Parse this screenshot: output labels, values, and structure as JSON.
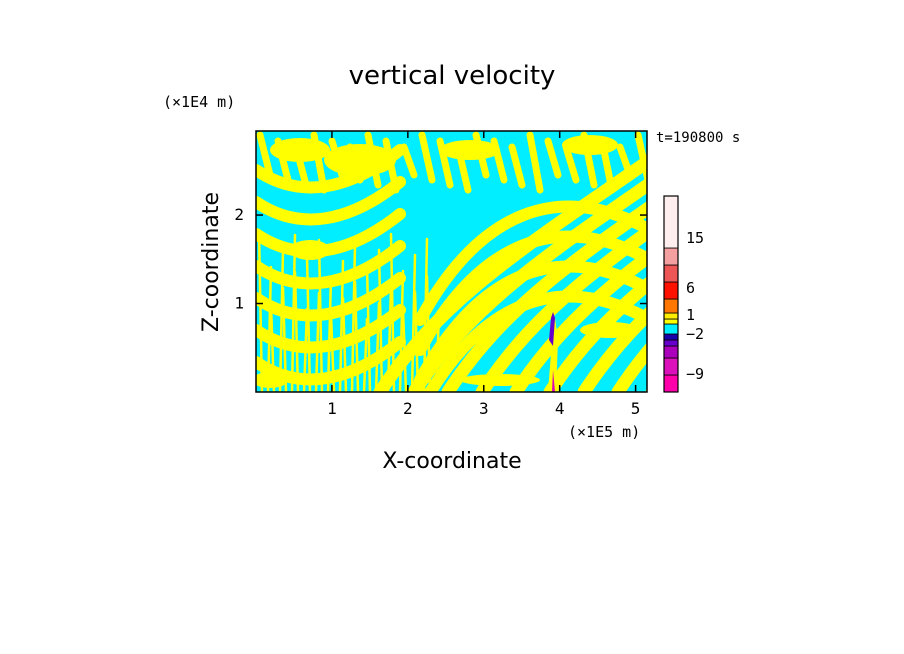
{
  "chart_data": {
    "type": "heatmap",
    "title": "vertical velocity",
    "xlabel": "X-coordinate",
    "ylabel": "Z-coordinate",
    "x_unit": "(×1E5 m)",
    "y_unit": "(×1E4 m)",
    "time_label": "t=190800 s",
    "xlim": [
      0,
      5.15
    ],
    "ylim": [
      0,
      2.95
    ],
    "x_ticks": [
      1,
      2,
      3,
      4,
      5
    ],
    "y_ticks": [
      1,
      2
    ],
    "colorbar": {
      "levels": [
        {
          "color": "#ff00aa"
        },
        {
          "color": "#dd11bb"
        },
        {
          "color": "#aa00bb"
        },
        {
          "color": "#6600cc"
        },
        {
          "color": "#1a00aa"
        },
        {
          "color": "#00eeff"
        },
        {
          "color": "#ffff00"
        },
        {
          "color": "#ffee00"
        },
        {
          "color": "#ff7700"
        },
        {
          "color": "#ff1100"
        },
        {
          "color": "#ee5555"
        },
        {
          "color": "#f4a0a0"
        },
        {
          "color": "#ffeeee"
        }
      ],
      "labels": [
        "15",
        "6",
        "1",
        "−2",
        "−9"
      ]
    },
    "colors": {
      "positive": "#ffff00",
      "negative": "#00eeff",
      "updraft_core": "#dd00bb"
    }
  }
}
